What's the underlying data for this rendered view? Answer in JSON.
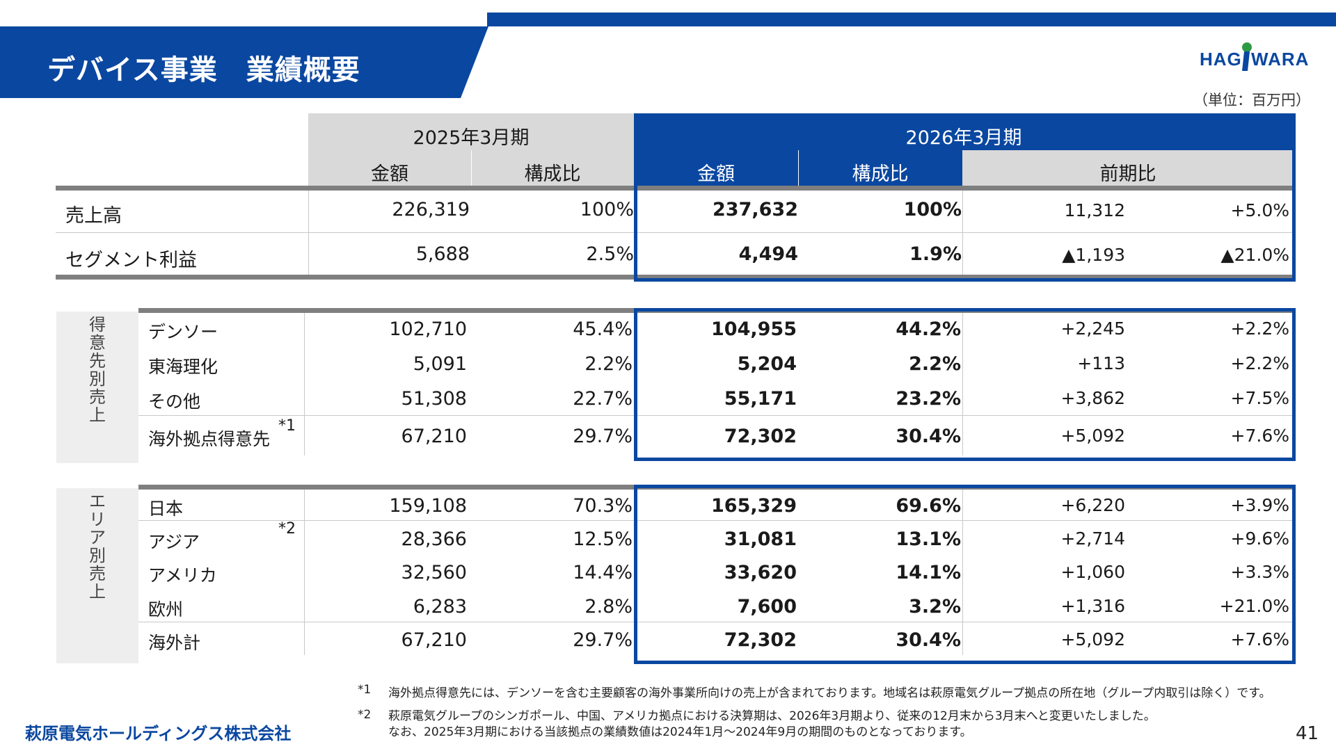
{
  "header": {
    "title": "デバイス事業　業績概要",
    "logo_text": "HAGIWARA",
    "unit": "（単位：百万円）"
  },
  "columns": {
    "fy2025": "2025年3月期",
    "fy2026": "2026年3月期",
    "amount": "金額",
    "ratio": "構成比",
    "yoy": "前期比"
  },
  "summary": [
    {
      "label": "売上高",
      "a25": "226,319",
      "r25": "100%",
      "a26": "237,632",
      "r26": "100%",
      "diff": "11,312",
      "pct": "+5.0%"
    },
    {
      "label": "セグメント利益",
      "a25": "5,688",
      "r25": "2.5%",
      "a26": "4,494",
      "r26": "1.9%",
      "diff": "▲1,193",
      "pct": "▲21.0%"
    }
  ],
  "customer": {
    "side_label": "得意先別売上",
    "rows": [
      {
        "label": "デンソー",
        "a25": "102,710",
        "r25": "45.4%",
        "a26": "104,955",
        "r26": "44.2%",
        "diff": "+2,245",
        "pct": "+2.2%"
      },
      {
        "label": "東海理化",
        "a25": "5,091",
        "r25": "2.2%",
        "a26": "5,204",
        "r26": "2.2%",
        "diff": "+113",
        "pct": "+2.2%"
      },
      {
        "label": "その他",
        "a25": "51,308",
        "r25": "22.7%",
        "a26": "55,171",
        "r26": "23.2%",
        "diff": "+3,862",
        "pct": "+7.5%"
      },
      {
        "label": "海外拠点得意先",
        "note": "*1",
        "a25": "67,210",
        "r25": "29.7%",
        "a26": "72,302",
        "r26": "30.4%",
        "diff": "+5,092",
        "pct": "+7.6%"
      }
    ]
  },
  "area": {
    "side_label": "エリア別売上",
    "rows": [
      {
        "label": "日本",
        "a25": "159,108",
        "r25": "70.3%",
        "a26": "165,329",
        "r26": "69.6%",
        "diff": "+6,220",
        "pct": "+3.9%"
      },
      {
        "label": "アジア",
        "note": "*2",
        "a25": "28,366",
        "r25": "12.5%",
        "a26": "31,081",
        "r26": "13.1%",
        "diff": "+2,714",
        "pct": "+9.6%"
      },
      {
        "label": "アメリカ",
        "a25": "32,560",
        "r25": "14.4%",
        "a26": "33,620",
        "r26": "14.1%",
        "diff": "+1,060",
        "pct": "+3.3%"
      },
      {
        "label": "欧州",
        "a25": "6,283",
        "r25": "2.8%",
        "a26": "7,600",
        "r26": "3.2%",
        "diff": "+1,316",
        "pct": "+21.0%"
      },
      {
        "label": "海外計",
        "a25": "67,210",
        "r25": "29.7%",
        "a26": "72,302",
        "r26": "30.4%",
        "diff": "+5,092",
        "pct": "+7.6%"
      }
    ]
  },
  "footnotes": {
    "n1_mark": "*1",
    "n1_text": "海外拠点得意先には、デンソーを含む主要顧客の海外事業所向けの売上が含まれております。地域名は萩原電気グループ拠点の所在地（グループ内取引は除く）です。",
    "n2_mark": "*2",
    "n2_text1": "萩原電気グループのシンガポール、中国、アメリカ拠点における決算期は、2026年3月期より、従来の12月末から3月末へと変更いたしました。",
    "n2_text2": "なお、2025年3月期における当該拠点の業績数値は2024年1月～2024年9月の期間のものとなっております。"
  },
  "footer": {
    "company": "萩原電気ホールディングス株式会社",
    "page": "41"
  },
  "colors": {
    "brand": "#0a47a0",
    "header_grey": "#d9d9d9",
    "side_grey": "#eeeeee"
  }
}
